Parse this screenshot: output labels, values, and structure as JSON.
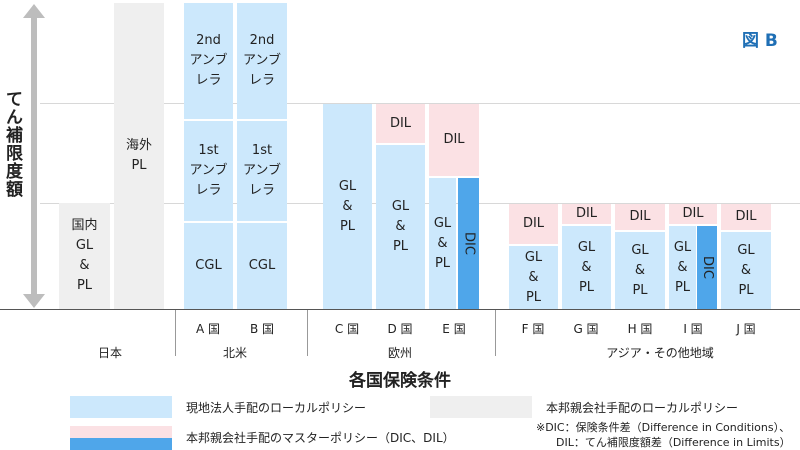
{
  "figure_label": "図 B",
  "y_axis_label": "てん補限度額",
  "x_axis_title": "各国保険条件",
  "blocks": {
    "japan_domestic": "国内\nGL\n&\nPL",
    "japan_overseas": "海外\nPL",
    "a_2nd": "2nd\nアンブ\nレラ",
    "a_1st": "1st\nアンブ\nレラ",
    "a_cgl": "CGL",
    "b_2nd": "2nd\nアンブ\nレラ",
    "b_1st": "1st\nアンブ\nレラ",
    "b_cgl": "CGL",
    "c_glpl": "GL\n&\nPL",
    "d_dil": "DIL",
    "d_glpl": "GL\n&\nPL",
    "e_dil": "DIL",
    "e_glpl": "GL\n&\nPL",
    "e_dic": "DIC",
    "f_dil": "DIL",
    "f_glpl": "GL\n&\nPL",
    "g_dil": "DIL",
    "g_glpl": "GL\n&\nPL",
    "h_dil": "DIL",
    "h_glpl": "GL\n&\nPL",
    "i_dil": "DIL",
    "i_glpl": "GL\n&\nPL",
    "i_dic": "DIC",
    "j_dil": "DIL",
    "j_glpl": "GL\n&\nPL"
  },
  "countries": [
    "A 国",
    "B 国",
    "C 国",
    "D 国",
    "E 国",
    "F 国",
    "G 国",
    "H 国",
    "I 国",
    "J 国"
  ],
  "groups": [
    "日本",
    "北米",
    "欧州",
    "アジア・その他地域"
  ],
  "legend": {
    "local_policy": "現地法人手配のローカルポリシー",
    "parent_local_policy": "本邦親会社手配のローカルポリシー",
    "master_policy": "本邦親会社手配のマスターポリシー（DIC、DIL）",
    "note_line1": "※DIC：保険条件差（Difference in Conditions）、",
    "note_line2": "DIL：てん補限度額差（Difference in Limits）"
  },
  "colors": {
    "local": "#cce8fc",
    "parent_local": "#efefef",
    "dil": "#fbe1e4",
    "dic": "#4fa6ea",
    "accent": "#1f6fb5"
  }
}
